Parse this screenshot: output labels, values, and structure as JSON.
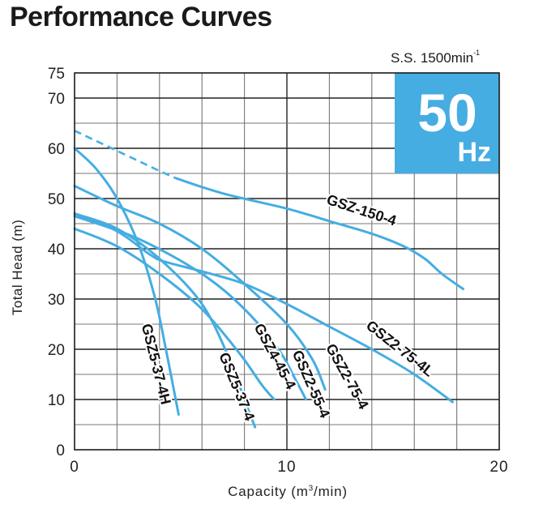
{
  "chart_data": {
    "type": "line",
    "title": "Performance Curves",
    "subtitle": "S.S. 1500min",
    "subtitle_sup": "-1",
    "badge": {
      "main": "50",
      "unit": "Hz",
      "color": "#45ade2"
    },
    "xlabel": "Capacity (m",
    "xlabel_sup": "3",
    "xlabel_tail": "/min)",
    "ylabel": "Total Head (m)",
    "xlim": [
      0,
      20
    ],
    "ylim": [
      0,
      75
    ],
    "x_ticks": [
      0,
      10,
      20
    ],
    "y_ticks": [
      0,
      10,
      20,
      30,
      40,
      50,
      60,
      70,
      75
    ],
    "grid": true,
    "x_grid_step": 2,
    "y_grid_step": 5,
    "line_color": "#45ade2",
    "series": [
      {
        "name": "GSZ-150-4",
        "dashed_segment": [
          [
            0,
            63.5
          ],
          [
            2,
            59.5
          ],
          [
            4,
            55.5
          ],
          [
            4.8,
            54
          ]
        ],
        "points": [
          [
            4.8,
            54
          ],
          [
            7,
            51
          ],
          [
            10,
            48
          ],
          [
            12,
            45.5
          ],
          [
            14,
            43
          ],
          [
            15.5,
            40.5
          ],
          [
            16.5,
            38
          ],
          [
            17.3,
            35
          ],
          [
            18.3,
            32
          ]
        ]
      },
      {
        "name": "GSZ5-37-4H",
        "points": [
          [
            0,
            60
          ],
          [
            1,
            56
          ],
          [
            2,
            50
          ],
          [
            3,
            41
          ],
          [
            3.8,
            30
          ],
          [
            4.3,
            20
          ],
          [
            4.9,
            7
          ]
        ]
      },
      {
        "name": "GSZ5-37-4",
        "points": [
          [
            0,
            47
          ],
          [
            2,
            44
          ],
          [
            4,
            38
          ],
          [
            6,
            29
          ],
          [
            7.3,
            18
          ],
          [
            8,
            10
          ],
          [
            8.5,
            4.5
          ]
        ]
      },
      {
        "name": "GSZ4-45-4",
        "points": [
          [
            0,
            44
          ],
          [
            2,
            40.5
          ],
          [
            4,
            35
          ],
          [
            6,
            28
          ],
          [
            7.8,
            19
          ],
          [
            8.8,
            13
          ],
          [
            9.4,
            10
          ]
        ]
      },
      {
        "name": "GSZ2-55-4",
        "points": [
          [
            0,
            46.5
          ],
          [
            3,
            42
          ],
          [
            6,
            35
          ],
          [
            8,
            28
          ],
          [
            9.6,
            20
          ],
          [
            10.4,
            14
          ],
          [
            10.9,
            10
          ]
        ]
      },
      {
        "name": "GSZ2-75-4",
        "points": [
          [
            0,
            52.5
          ],
          [
            2,
            48.5
          ],
          [
            4,
            45
          ],
          [
            6,
            40
          ],
          [
            8,
            33
          ],
          [
            10,
            25
          ],
          [
            11.2,
            18
          ],
          [
            11.8,
            12
          ]
        ]
      },
      {
        "name": "GSZ2-75-4L",
        "points": [
          [
            0,
            47
          ],
          [
            2,
            43.5
          ],
          [
            3.5,
            39
          ],
          [
            4.2,
            37.5
          ],
          [
            6,
            35.5
          ],
          [
            8,
            33
          ],
          [
            10,
            29
          ],
          [
            12,
            24.5
          ],
          [
            14,
            20
          ],
          [
            16,
            15
          ],
          [
            17.8,
            9.5
          ]
        ]
      }
    ]
  }
}
